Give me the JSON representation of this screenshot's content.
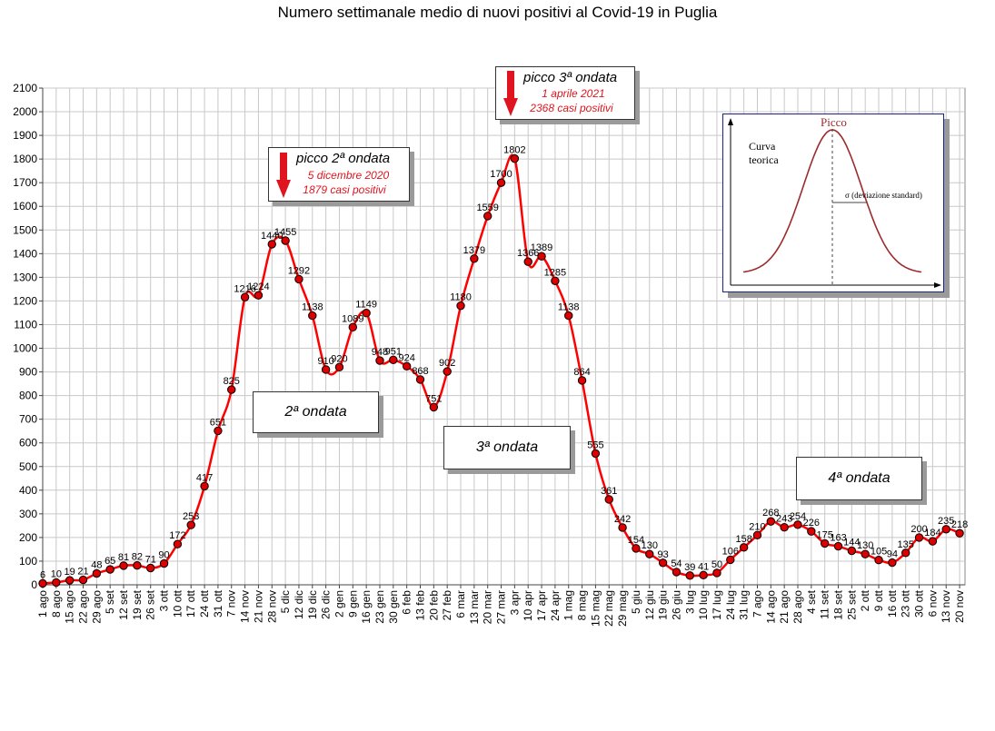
{
  "title": "Numero settimanale medio di nuovi positivi al Covid-19 in Puglia",
  "chart_data": {
    "type": "line",
    "title": "Numero settimanale medio di nuovi positivi al Covid-19 in Puglia",
    "xlabel": "",
    "ylabel": "",
    "ylim": [
      0,
      2100
    ],
    "yticks": [
      0,
      100,
      200,
      300,
      400,
      500,
      600,
      700,
      800,
      900,
      1000,
      1100,
      1200,
      1300,
      1400,
      1500,
      1600,
      1700,
      1800,
      1900,
      2000,
      2100
    ],
    "grid": true,
    "categories": [
      "1 ago",
      "8 ago",
      "15 ago",
      "22 ago",
      "29 ago",
      "5 set",
      "12 set",
      "19 set",
      "26 set",
      "3 ott",
      "10 ott",
      "17 ott",
      "24 ott",
      "31 ott",
      "7 nov",
      "14 nov",
      "21 nov",
      "28 nov",
      "5 dic",
      "12 dic",
      "19 dic",
      "26 dic",
      "2 gen",
      "9 gen",
      "16 gen",
      "23 gen",
      "30 gen",
      "6 feb",
      "13 feb",
      "20 feb",
      "27 feb",
      "6 mar",
      "13 mar",
      "20 mar",
      "27 mar",
      "3 apr",
      "10 apr",
      "17 apr",
      "24 apr",
      "1 mag",
      "8 mag",
      "15 mag",
      "22 mag",
      "29 mag",
      "5 giu",
      "12 giu",
      "19 giu",
      "26 giu",
      "3 lug",
      "10 lug",
      "17 lug",
      "24 lug",
      "31 lug",
      "7 ago",
      "14 ago",
      "21 ago",
      "28 ago",
      "4 set",
      "11 set",
      "18 set",
      "25 set",
      "2 ott",
      "9 ott",
      "16 ott",
      "23 ott",
      "30 ott",
      "6 nov",
      "13 nov",
      "20 nov"
    ],
    "values": [
      6,
      10,
      19,
      21,
      48,
      65,
      81,
      82,
      71,
      90,
      172,
      253,
      417,
      651,
      825,
      1216,
      1224,
      1440,
      1455,
      1292,
      1138,
      910,
      920,
      1089,
      1149,
      948,
      951,
      924,
      868,
      751,
      902,
      1180,
      1379,
      1559,
      1700,
      1802,
      1366,
      1389,
      1285,
      1138,
      864,
      555,
      361,
      242,
      154,
      130,
      93,
      54,
      39,
      41,
      50,
      106,
      158,
      210,
      268,
      243,
      254,
      226,
      175,
      163,
      144,
      130,
      105,
      94,
      135,
      200,
      184,
      235,
      218
    ],
    "labels": [
      "6",
      "10",
      "19",
      "21",
      "48",
      "65",
      "81",
      "82",
      "71",
      "90",
      "172",
      "253",
      "417",
      "651",
      "825",
      "1216",
      "1224",
      "1440",
      "1455",
      "1292",
      "1138",
      "910",
      "920",
      "1089",
      "1149",
      "948",
      "951",
      "924",
      "868",
      "751",
      "902",
      "1180",
      "1379",
      "1559",
      "1700",
      "1802",
      "1366",
      "1389",
      "1285",
      "1138",
      "864",
      "555",
      "361",
      "242",
      "154",
      "130",
      "93",
      "54",
      "39",
      "41",
      "50",
      "106",
      "158",
      "210",
      "268",
      "243",
      "254",
      "226",
      "175",
      "163",
      "144",
      "130",
      "105",
      "94",
      "135",
      "200",
      "184",
      "235",
      "218"
    ],
    "line_color": "#ff0000",
    "marker_color": "#dd0000",
    "grid_color": "#c8c8c8"
  },
  "annotations": {
    "peak2": {
      "title": "picco 2ª ondata",
      "date": "5 dicembre 2020",
      "cases": "1879 casi positivi"
    },
    "peak3": {
      "title": "picco 3ª ondata",
      "date": "1 aprile 2021",
      "cases": "2368 casi positivi"
    },
    "wave2": "2ª ondata",
    "wave3": "3ª ondata",
    "wave4": "4ª ondata"
  },
  "inset": {
    "peak_label": "Picco",
    "curve_label_1": "Curva",
    "curve_label_2": "teorica",
    "sigma_label": "σ  (deviazione standard)"
  }
}
